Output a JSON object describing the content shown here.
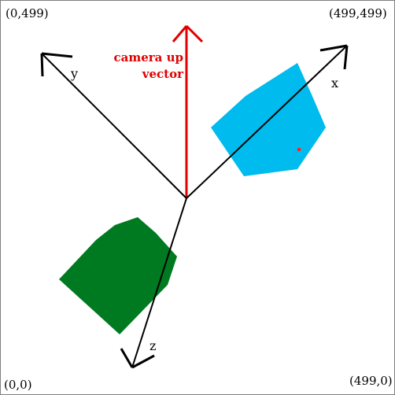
{
  "corners": {
    "top_left": "(0,499)",
    "top_right": "(499,499)",
    "bottom_left": "(0,0)",
    "bottom_right": "(499,0)"
  },
  "axes": {
    "x_label": "x",
    "y_label": "y",
    "z_label": "z"
  },
  "camera_up": {
    "line1": "camera up",
    "line2": "vector"
  },
  "colors": {
    "axis": "#000000",
    "camera_up": "#e00000",
    "blue_shape": "#00bbee",
    "green_shape": "#007a20",
    "marker": "#ff2020",
    "border": "#7f7f7f"
  }
}
